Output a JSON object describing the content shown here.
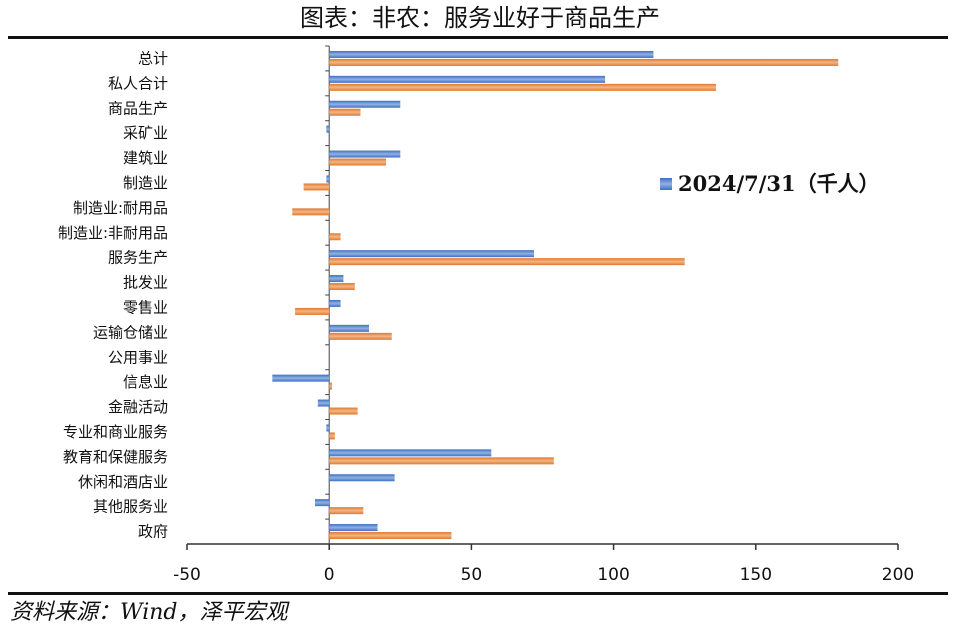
{
  "page_title": "图表：非农：服务业好于商品生产",
  "source": "资料来源：Wind，泽平宏观",
  "colors": {
    "series_a": "#3F6FBF",
    "series_b": "#E0782A"
  },
  "chart_data": {
    "type": "bar",
    "orientation": "horizontal",
    "title": "图表：非农：服务业好于商品生产",
    "categories": [
      "总计",
      "私人合计",
      "商品生产",
      "采矿业",
      "建筑业",
      "制造业",
      "制造业:耐用品",
      "制造业:非耐用品",
      "服务生产",
      "批发业",
      "零售业",
      "运输仓储业",
      "公用事业",
      "信息业",
      "金融活动",
      "专业和商业服务",
      "教育和保健服务",
      "休闲和酒店业",
      "其他服务业",
      "政府"
    ],
    "series": [
      {
        "name": "2024/7/31（千人）",
        "color": "#3F6FBF",
        "values": [
          114,
          97,
          25,
          -1,
          25,
          -1,
          0,
          0,
          72,
          5,
          4,
          14,
          0,
          -20,
          -4,
          -1,
          57,
          23,
          -5,
          17
        ]
      },
      {
        "name": "",
        "color": "#E0782A",
        "values": [
          179,
          136,
          11,
          0,
          20,
          -9,
          -13,
          4,
          125,
          9,
          -12,
          22,
          0,
          1,
          10,
          2,
          79,
          0,
          12,
          43
        ]
      }
    ],
    "xlim": [
      -50,
      200
    ],
    "xticks": [
      -50,
      0,
      50,
      100,
      150,
      200
    ],
    "legend": {
      "label": "2024/7/31（千人）",
      "position": "center-right"
    }
  }
}
